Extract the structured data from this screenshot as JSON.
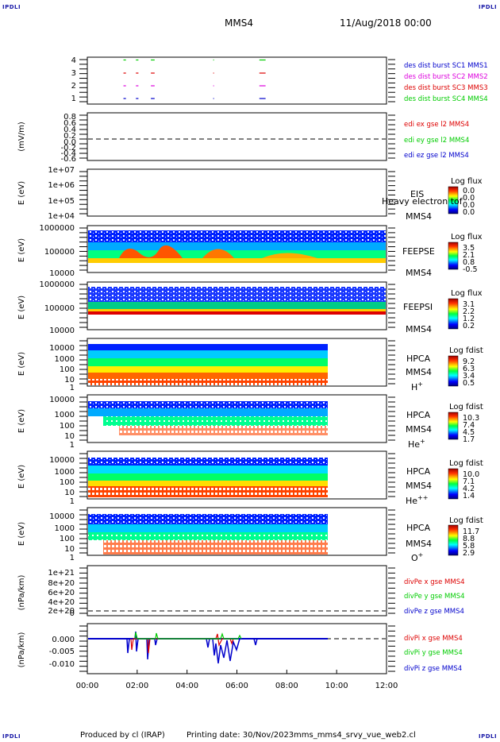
{
  "header": {
    "corner_left_top": "IPDLI",
    "corner_right_top": "IPDLI",
    "corner_left_bottom": "IPDLI",
    "corner_right_bottom": "IPDLI",
    "spacecraft": "MMS4",
    "date_time": "11/Aug/2018 00:00"
  },
  "footer": {
    "produced_by": "Produced by cl (IRAP)",
    "printing_date": "Printing date: 30/Nov/2023",
    "script_name": "mms_mms4_srvy_vue_web2.cl"
  },
  "colors": {
    "red": "#dd0000",
    "green": "#00cc00",
    "blue": "#0000cc",
    "magenta": "#dd00dd"
  },
  "chart_data": [
    {
      "type": "scatter",
      "name": "burst-coverage",
      "yticks": [
        "4",
        "3",
        "2",
        "1"
      ],
      "legend": [
        {
          "text": "des dist burst SC1 MMS1",
          "color": "#0000cc"
        },
        {
          "text": "des dist burst SC2 MMS2",
          "color": "#dd00dd"
        },
        {
          "text": "des dist burst SC3 MMS3",
          "color": "#dd0000"
        },
        {
          "text": "des dist burst SC4 MMS4",
          "color": "#00cc00"
        }
      ],
      "segments_hours": [
        [
          1.45,
          1.55
        ],
        [
          1.95,
          2.05
        ],
        [
          2.55,
          2.7
        ],
        [
          5.05,
          5.08
        ],
        [
          6.9,
          7.15
        ]
      ]
    },
    {
      "type": "line",
      "name": "edi-e-field",
      "ylabel": "(mV/m)",
      "yticks": [
        "0.8",
        "0.6",
        "0.4",
        "0.2",
        "0.0",
        "-0.2",
        "-0.4",
        "-0.6"
      ],
      "ylim": [
        -0.6,
        0.8
      ],
      "legend": [
        {
          "text": "edi ex gse l2 MMS4",
          "color": "#dd0000"
        },
        {
          "text": "edi ey gse l2 MMS4",
          "color": "#00cc00"
        },
        {
          "text": "edi ez gse l2 MMS4",
          "color": "#0000cc"
        }
      ]
    },
    {
      "type": "heatmap",
      "name": "eis",
      "ylabel": "E (eV)",
      "yticks": [
        "1e+07",
        "1e+06",
        "1e+05",
        "1e+04"
      ],
      "instrument": "EIS",
      "instrument_sub": "MMS4",
      "overlay_text": "Heavy electron tof",
      "cbar_title": "Log flux",
      "cbar_values": [
        "0.0",
        "0.0",
        "0.0",
        "0.0"
      ]
    },
    {
      "type": "heatmap",
      "name": "feeps-electron",
      "ylabel": "E (eV)",
      "yticks": [
        "1000000",
        "100000",
        "10000"
      ],
      "instrument": "FEEPSE",
      "instrument_sub": "MMS4",
      "cbar_title": "Log flux",
      "cbar_values": [
        "3.5",
        "2.1",
        "0.8",
        "-0.5"
      ]
    },
    {
      "type": "heatmap",
      "name": "feeps-ion",
      "ylabel": "E (eV)",
      "yticks": [
        "1000000",
        "100000",
        "10000"
      ],
      "instrument": "FEEPSI",
      "instrument_sub": "MMS4",
      "cbar_title": "Log flux",
      "cbar_values": [
        "3.1",
        "2.2",
        "1.2",
        "0.2"
      ]
    },
    {
      "type": "heatmap",
      "name": "hpca-h",
      "ylabel": "E (eV)",
      "yticks": [
        "10000",
        "1000",
        "100",
        "10",
        "1"
      ],
      "instrument": "HPCA",
      "instrument_sub": "MMS4",
      "species": "H",
      "species_sup": "+",
      "cbar_title": "Log fdist",
      "cbar_values": [
        "9.2",
        "6.3",
        "3.4",
        "0.5"
      ]
    },
    {
      "type": "heatmap",
      "name": "hpca-he",
      "ylabel": "E (eV)",
      "yticks": [
        "10000",
        "1000",
        "100",
        "10",
        "1"
      ],
      "instrument": "HPCA",
      "instrument_sub": "MMS4",
      "species": "He",
      "species_sup": "+",
      "cbar_title": "Log fdist",
      "cbar_values": [
        "10.3",
        "7.4",
        "4.5",
        "1.7"
      ]
    },
    {
      "type": "heatmap",
      "name": "hpca-he2",
      "ylabel": "E (eV)",
      "yticks": [
        "10000",
        "1000",
        "100",
        "10",
        "1"
      ],
      "instrument": "HPCA",
      "instrument_sub": "MMS4",
      "species": "He",
      "species_sup": "++",
      "cbar_title": "Log fdist",
      "cbar_values": [
        "10.0",
        "7.1",
        "4.2",
        "1.4"
      ]
    },
    {
      "type": "heatmap",
      "name": "hpca-o",
      "ylabel": "E (eV)",
      "yticks": [
        "10000",
        "1000",
        "100",
        "10",
        "1"
      ],
      "instrument": "HPCA",
      "instrument_sub": "MMS4",
      "species": "O",
      "species_sup": "+",
      "cbar_title": "Log fdist",
      "cbar_values": [
        "11.7",
        "8.8",
        "5.8",
        "2.9"
      ]
    },
    {
      "type": "line",
      "name": "divpe",
      "ylabel": "(nPa/km)",
      "yticks": [
        "1e+21",
        "8e+20",
        "6e+20",
        "4e+20",
        "2e+20",
        "0"
      ],
      "ylim": [
        0,
        1e+21
      ],
      "legend": [
        {
          "text": "divPe x gse MMS4",
          "color": "#dd0000"
        },
        {
          "text": "divPe y gse MMS4",
          "color": "#00cc00"
        },
        {
          "text": "divPe z gse MMS4",
          "color": "#0000cc"
        }
      ]
    },
    {
      "type": "line",
      "name": "divpi",
      "ylabel": "(nPa/km)",
      "yticks": [
        "0.000",
        "-0.005",
        "-0.010"
      ],
      "ylim": [
        -0.013,
        0.002
      ],
      "legend": [
        {
          "text": "divPi x gse MMS4",
          "color": "#dd0000"
        },
        {
          "text": "divPi y gse MMS4",
          "color": "#00cc00"
        },
        {
          "text": "divPi z gse MMS4",
          "color": "#0000cc"
        }
      ]
    }
  ],
  "xaxis": {
    "ticks": [
      "00:00",
      "02:00",
      "04:00",
      "06:00",
      "08:00",
      "10:00",
      "12:00"
    ],
    "range_hours": [
      0,
      12
    ]
  }
}
